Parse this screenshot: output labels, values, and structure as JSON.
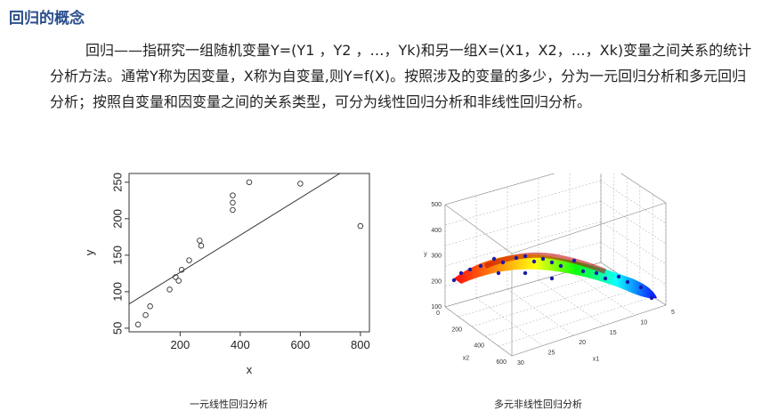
{
  "section_title": "回归的概念",
  "paragraph": "回归——指研究一组随机变量Y=(Y1 ，Y2 ，…，Yk)和另一组X=(X1，X2，…，Xk)变量之间关系的统计分析方法。通常Y称为因变量，X称为自变量,则Y=f(X)。按照涉及的变量的多少，分为一元回归分析和多元回归分析；按照自变量和因变量之间的关系类型，可分为线性回归分析和非线性回归分析。",
  "figures": {
    "left_caption": "一元线性回归分析",
    "right_caption": "多元非线性回归分析"
  },
  "chart_data": [
    {
      "type": "scatter",
      "xlabel": "x",
      "ylabel": "y",
      "xlim": [
        30,
        830
      ],
      "ylim": [
        45,
        262
      ],
      "x_ticks": [
        200,
        400,
        600,
        800
      ],
      "y_ticks": [
        50,
        100,
        150,
        200,
        250
      ],
      "points": [
        [
          60,
          55
        ],
        [
          85,
          68
        ],
        [
          100,
          80
        ],
        [
          165,
          103
        ],
        [
          185,
          120
        ],
        [
          195,
          115
        ],
        [
          205,
          130
        ],
        [
          230,
          143
        ],
        [
          265,
          170
        ],
        [
          270,
          163
        ],
        [
          375,
          212
        ],
        [
          375,
          222
        ],
        [
          375,
          232
        ],
        [
          430,
          250
        ],
        [
          600,
          248
        ],
        [
          800,
          190
        ]
      ],
      "regression_line": {
        "intercept": 75.5,
        "slope": 0.255
      },
      "grid": false,
      "color": "#333333"
    },
    {
      "type": "surface3d",
      "xlabel": "x2",
      "ylabel": "x1",
      "zlabel": "y",
      "z_ticks": [
        100,
        200,
        300,
        400,
        500
      ],
      "x2_ticks": [
        0,
        200,
        400,
        600
      ],
      "x1_ticks": [
        5,
        10,
        15,
        20,
        25,
        30
      ],
      "colormap": [
        "#ff0000",
        "#ff7f00",
        "#ffff00",
        "#00ff00",
        "#00ffff",
        "#0000ff"
      ],
      "point_color": "#1a1aaa",
      "grid": true
    }
  ]
}
